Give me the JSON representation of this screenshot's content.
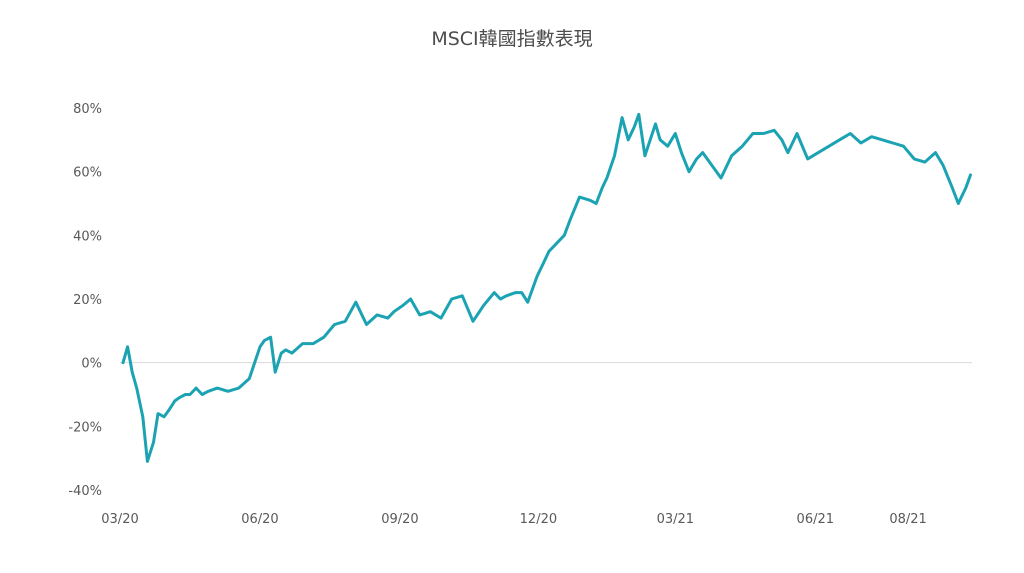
{
  "chart_data": {
    "type": "line",
    "title": "MSCI韓國指數表現",
    "xlabel": "",
    "ylabel": "",
    "ylim": [
      -0.4,
      0.8
    ],
    "y_ticks": [
      {
        "value": 0.8,
        "label": "80%"
      },
      {
        "value": 0.6,
        "label": "60%"
      },
      {
        "value": 0.4,
        "label": "40%"
      },
      {
        "value": 0.2,
        "label": "20%"
      },
      {
        "value": 0.0,
        "label": "0%"
      },
      {
        "value": -0.2,
        "label": "-20%"
      },
      {
        "value": -0.4,
        "label": "-40%"
      }
    ],
    "xlim": [
      "2020-03-01",
      "2021-09-12"
    ],
    "x_ticks": [
      {
        "value": "2020-03-01",
        "label": "03/20"
      },
      {
        "value": "2020-06-01",
        "label": "06/20"
      },
      {
        "value": "2020-09-01",
        "label": "09/20"
      },
      {
        "value": "2020-12-01",
        "label": "12/20"
      },
      {
        "value": "2021-03-01",
        "label": "03/21"
      },
      {
        "value": "2021-06-01",
        "label": "06/21"
      },
      {
        "value": "2021-08-01",
        "label": "08/21"
      }
    ],
    "grid": false,
    "zero_line": true,
    "line_color": "#1ba3b3",
    "series": [
      {
        "x": [
          "2020-03-03",
          "2020-03-06",
          "2020-03-09",
          "2020-03-12",
          "2020-03-16",
          "2020-03-19",
          "2020-03-23",
          "2020-03-26",
          "2020-03-30",
          "2020-04-02",
          "2020-04-06",
          "2020-04-09",
          "2020-04-13",
          "2020-04-16",
          "2020-04-20",
          "2020-04-24",
          "2020-04-28",
          "2020-05-04",
          "2020-05-11",
          "2020-05-18",
          "2020-05-25",
          "2020-06-01",
          "2020-06-04",
          "2020-06-08",
          "2020-06-11",
          "2020-06-15",
          "2020-06-18",
          "2020-06-22",
          "2020-06-29",
          "2020-07-06",
          "2020-07-13",
          "2020-07-20",
          "2020-07-27",
          "2020-08-03",
          "2020-08-10",
          "2020-08-17",
          "2020-08-24",
          "2020-08-28",
          "2020-09-03",
          "2020-09-08",
          "2020-09-14",
          "2020-09-21",
          "2020-09-28",
          "2020-10-05",
          "2020-10-12",
          "2020-10-19",
          "2020-10-26",
          "2020-11-02",
          "2020-11-06",
          "2020-11-10",
          "2020-11-16",
          "2020-11-20",
          "2020-11-24",
          "2020-11-30",
          "2020-12-04",
          "2020-12-08",
          "2020-12-14",
          "2020-12-18",
          "2020-12-22",
          "2020-12-28",
          "2021-01-04",
          "2021-01-08",
          "2021-01-12",
          "2021-01-15",
          "2021-01-20",
          "2021-01-25",
          "2021-01-29",
          "2021-02-02",
          "2021-02-05",
          "2021-02-09",
          "2021-02-16",
          "2021-02-19",
          "2021-02-24",
          "2021-03-01",
          "2021-03-05",
          "2021-03-10",
          "2021-03-15",
          "2021-03-19",
          "2021-03-25",
          "2021-03-31",
          "2021-04-07",
          "2021-04-14",
          "2021-04-21",
          "2021-04-28",
          "2021-05-05",
          "2021-05-10",
          "2021-05-14",
          "2021-05-20",
          "2021-05-27",
          "2021-06-03",
          "2021-06-10",
          "2021-06-17",
          "2021-06-24",
          "2021-07-01",
          "2021-07-08",
          "2021-07-15",
          "2021-07-22",
          "2021-07-29",
          "2021-08-05",
          "2021-08-12",
          "2021-08-19",
          "2021-08-24",
          "2021-08-30",
          "2021-09-03",
          "2021-09-08"
        ],
        "y": [
          0.0,
          0.05,
          -0.03,
          -0.08,
          -0.17,
          -0.31,
          -0.25,
          -0.16,
          -0.17,
          -0.15,
          -0.12,
          -0.11,
          -0.1,
          -0.1,
          -0.08,
          -0.1,
          -0.09,
          -0.08,
          -0.09,
          -0.08,
          -0.05,
          0.05,
          0.07,
          0.08,
          -0.03,
          0.03,
          0.04,
          0.03,
          0.06,
          0.06,
          0.08,
          0.12,
          0.13,
          0.19,
          0.12,
          0.15,
          0.14,
          0.16,
          0.18,
          0.2,
          0.15,
          0.16,
          0.14,
          0.2,
          0.21,
          0.13,
          0.18,
          0.22,
          0.2,
          0.21,
          0.22,
          0.22,
          0.19,
          0.27,
          0.31,
          0.35,
          0.38,
          0.4,
          0.45,
          0.52,
          0.51,
          0.5,
          0.55,
          0.58,
          0.65,
          0.77,
          0.7,
          0.74,
          0.78,
          0.65,
          0.75,
          0.7,
          0.68,
          0.72,
          0.66,
          0.6,
          0.64,
          0.66,
          0.62,
          0.58,
          0.65,
          0.68,
          0.72,
          0.72,
          0.73,
          0.7,
          0.66,
          0.72,
          0.64,
          0.66,
          0.68,
          0.7,
          0.72,
          0.69,
          0.71,
          0.7,
          0.69,
          0.68,
          0.64,
          0.63,
          0.66,
          0.62,
          0.55,
          0.5,
          0.55
        ]
      }
    ],
    "last_point": {
      "x": "2021-09-11",
      "y": 0.59
    }
  }
}
